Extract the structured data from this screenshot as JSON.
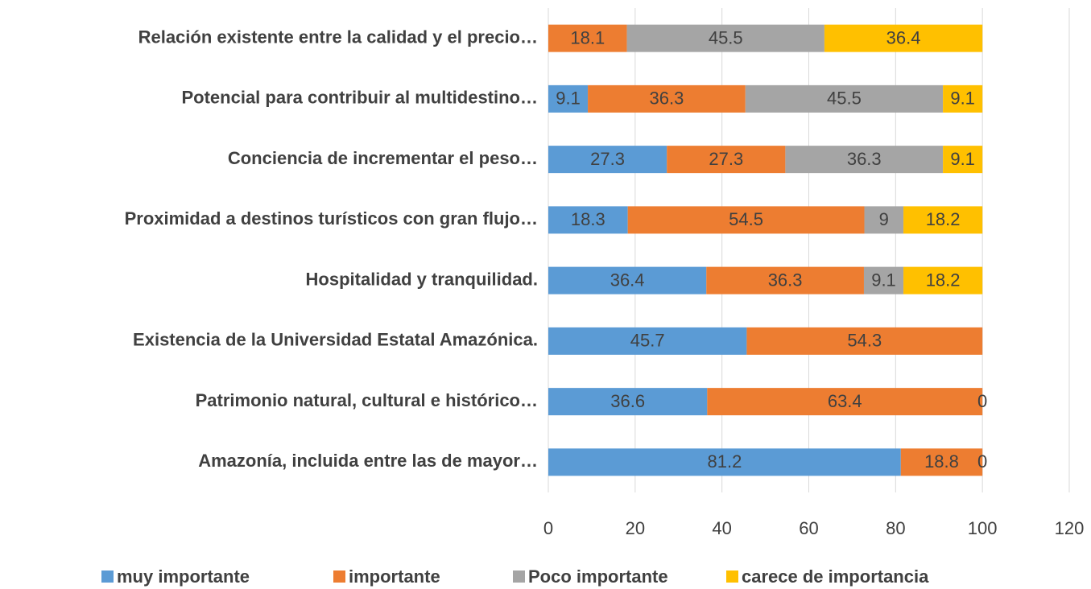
{
  "chart_data": {
    "type": "stacked-bar-horizontal",
    "categories": [
      "Relación existente entre la calidad y el precio…",
      "Potencial para contribuir al multidestino…",
      "Conciencia  de incrementar el peso…",
      "Proximidad a destinos turísticos con gran flujo…",
      "Hospitalidad y tranquilidad.",
      "Existencia de la Universidad Estatal Amazónica.",
      "Patrimonio natural, cultural e histórico…",
      "Amazonía, incluida entre las de mayor…"
    ],
    "series": [
      {
        "name": "muy importante",
        "color": "#5b9bd5",
        "values": [
          null,
          9.1,
          27.3,
          18.3,
          36.4,
          45.7,
          36.6,
          81.2
        ]
      },
      {
        "name": "importante",
        "color": "#ed7d31",
        "values": [
          18.1,
          36.3,
          27.3,
          54.5,
          36.3,
          54.3,
          63.4,
          18.8
        ]
      },
      {
        "name": "Poco importante",
        "color": "#a5a5a5",
        "values": [
          45.5,
          45.5,
          36.3,
          9,
          9.1,
          null,
          null,
          null
        ]
      },
      {
        "name": "carece de importancia",
        "color": "#ffc000",
        "values": [
          36.4,
          9.1,
          9.1,
          18.2,
          18.2,
          null,
          0,
          0
        ]
      }
    ],
    "xlim": [
      0,
      120
    ],
    "xticks": [
      0,
      20,
      40,
      60,
      80,
      100,
      120
    ],
    "grid": true,
    "legend": "bottom"
  }
}
